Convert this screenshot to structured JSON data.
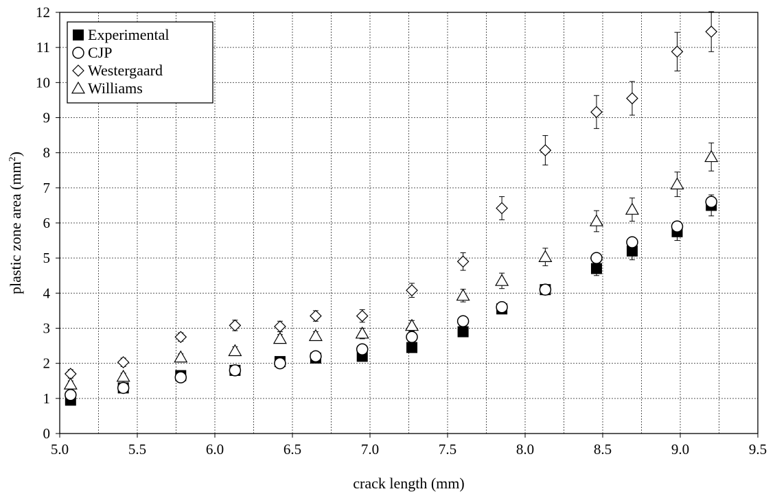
{
  "chart_data": {
    "type": "scatter",
    "title": "",
    "xlabel": "crack length (mm)",
    "ylabel_main": "plastic zone area (mm",
    "ylabel_sup": "2",
    "ylabel_end": ")",
    "xlim": [
      5.0,
      9.5
    ],
    "ylim": [
      0,
      12
    ],
    "x_ticks": [
      "5.0",
      "5.5",
      "6.0",
      "6.5",
      "7.0",
      "7.5",
      "8.0",
      "8.5",
      "9.0",
      "9.5"
    ],
    "y_ticks": [
      "0",
      "1",
      "2",
      "3",
      "4",
      "5",
      "6",
      "7",
      "8",
      "9",
      "10",
      "11",
      "12"
    ],
    "grid": true,
    "legend_position": "top-left",
    "x": [
      5.07,
      5.41,
      5.78,
      6.13,
      6.42,
      6.65,
      6.95,
      7.27,
      7.6,
      7.85,
      8.13,
      8.46,
      8.69,
      8.98,
      9.2
    ],
    "series": [
      {
        "name": "Experimental",
        "marker": "filled-square",
        "values": [
          0.95,
          1.3,
          1.65,
          1.8,
          2.05,
          2.15,
          2.2,
          2.45,
          2.9,
          3.55,
          4.1,
          4.7,
          5.2,
          5.75,
          6.5
        ],
        "errors": [
          0.1,
          0.1,
          0.1,
          0.1,
          0.1,
          0.1,
          0.1,
          0.1,
          0.1,
          0.12,
          0.15,
          0.2,
          0.25,
          0.25,
          0.3
        ]
      },
      {
        "name": "CJP",
        "marker": "open-circle",
        "values": [
          1.1,
          1.3,
          1.6,
          1.8,
          2.0,
          2.2,
          2.4,
          2.75,
          3.2,
          3.6,
          4.1,
          5.0,
          5.45,
          5.9,
          6.6
        ]
      },
      {
        "name": "Westergaard",
        "marker": "open-diamond",
        "values": [
          1.7,
          2.03,
          2.75,
          3.08,
          3.05,
          3.35,
          3.35,
          4.08,
          4.9,
          6.42,
          8.07,
          9.16,
          9.55,
          10.88,
          11.45
        ],
        "errors": [
          0.12,
          0.12,
          0.12,
          0.15,
          0.15,
          0.15,
          0.18,
          0.2,
          0.25,
          0.33,
          0.42,
          0.47,
          0.48,
          0.55,
          0.57
        ]
      },
      {
        "name": "Williams",
        "marker": "open-triangle",
        "values": [
          1.4,
          1.62,
          2.17,
          2.35,
          2.7,
          2.78,
          2.85,
          3.07,
          3.93,
          4.35,
          5.03,
          6.05,
          6.38,
          7.1,
          7.88
        ],
        "errors": [
          0.1,
          0.1,
          0.1,
          0.12,
          0.12,
          0.12,
          0.15,
          0.15,
          0.18,
          0.22,
          0.25,
          0.3,
          0.33,
          0.35,
          0.4
        ]
      }
    ]
  }
}
